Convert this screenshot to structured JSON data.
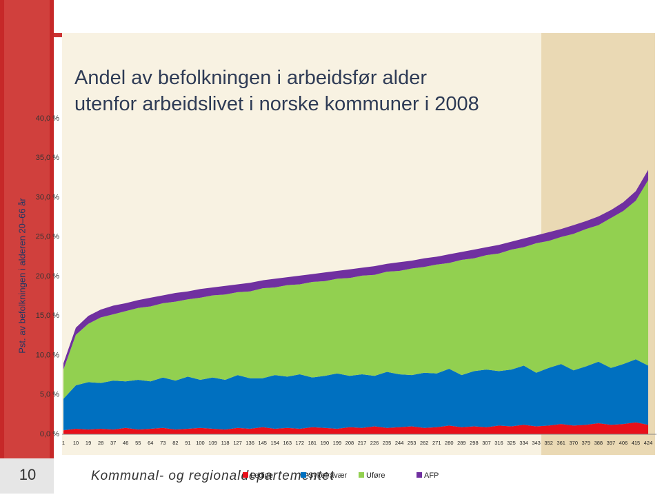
{
  "chart_data": {
    "type": "stacked_area",
    "title": "Andel av befolkningen i arbeidsfør alder utenfor arbeidslivet i norske kommuner i 2008",
    "y_label": "Pst. av befolkningen i alderen 20–66 år",
    "categories": [
      1,
      10,
      19,
      28,
      37,
      46,
      55,
      64,
      73,
      82,
      91,
      100,
      109,
      118,
      127,
      136,
      145,
      154,
      163,
      172,
      181,
      190,
      199,
      208,
      217,
      226,
      235,
      244,
      253,
      262,
      271,
      280,
      289,
      298,
      307,
      316,
      325,
      334,
      343,
      352,
      361,
      370,
      379,
      388,
      397,
      406,
      415,
      424
    ],
    "series": [
      {
        "name": "Ledige",
        "color": "#e8101a",
        "values": [
          0.5,
          0.7,
          0.6,
          0.7,
          0.6,
          0.8,
          0.6,
          0.7,
          0.8,
          0.6,
          0.7,
          0.8,
          0.7,
          0.6,
          0.8,
          0.7,
          0.9,
          0.7,
          0.8,
          0.7,
          0.9,
          0.8,
          0.7,
          0.9,
          0.8,
          1.0,
          0.8,
          0.9,
          1.0,
          0.8,
          0.9,
          1.1,
          0.9,
          1.0,
          0.9,
          1.1,
          1.0,
          1.2,
          1.0,
          1.1,
          1.3,
          1.1,
          1.2,
          1.4,
          1.2,
          1.3,
          1.5,
          1.2
        ]
      },
      {
        "name": "Sykefravær",
        "color": "#0070c0",
        "values": [
          4.0,
          5.5,
          6.0,
          5.8,
          6.2,
          5.9,
          6.3,
          6.0,
          6.4,
          6.2,
          6.6,
          6.1,
          6.5,
          6.3,
          6.7,
          6.4,
          6.2,
          6.8,
          6.5,
          6.9,
          6.3,
          6.6,
          7.0,
          6.5,
          6.8,
          6.4,
          7.1,
          6.7,
          6.5,
          7.0,
          6.8,
          7.2,
          6.6,
          7.0,
          7.3,
          6.9,
          7.2,
          7.5,
          6.8,
          7.3,
          7.6,
          7.0,
          7.4,
          7.8,
          7.2,
          7.6,
          8.0,
          7.5
        ]
      },
      {
        "name": "Uføre",
        "color": "#92d050",
        "values": [
          3.7,
          6.4,
          7.4,
          8.3,
          8.4,
          8.9,
          9.1,
          9.5,
          9.4,
          10.0,
          9.8,
          10.4,
          10.4,
          10.8,
          10.5,
          11.0,
          11.4,
          11.1,
          11.6,
          11.4,
          12.1,
          12.0,
          12.0,
          12.4,
          12.5,
          12.8,
          12.7,
          13.1,
          13.5,
          13.4,
          13.8,
          13.4,
          14.6,
          14.3,
          14.5,
          14.9,
          15.2,
          15.0,
          16.4,
          16.1,
          16.1,
          17.3,
          17.4,
          17.3,
          19.0,
          19.4,
          20.1,
          23.5
        ]
      },
      {
        "name": "AFP",
        "color": "#7030a0",
        "values": [
          0.8,
          0.9,
          1.0,
          1.0,
          1.1,
          1.0,
          1.0,
          1.1,
          1.0,
          1.1,
          1.0,
          1.1,
          1.0,
          1.1,
          1.0,
          1.1,
          1.0,
          1.1,
          1.0,
          1.1,
          1.0,
          1.1,
          1.0,
          1.1,
          1.0,
          1.1,
          1.0,
          1.1,
          1.0,
          1.1,
          1.0,
          1.1,
          1.0,
          1.1,
          1.0,
          1.1,
          1.0,
          1.1,
          1.0,
          1.1,
          1.0,
          1.1,
          1.0,
          1.1,
          1.0,
          1.1,
          1.2,
          1.3
        ]
      }
    ],
    "ylim": [
      0,
      40
    ],
    "yticks": [
      {
        "value": 0,
        "label": "0,0 %"
      },
      {
        "value": 5,
        "label": "5,0 %"
      },
      {
        "value": 10,
        "label": "10,0 %"
      },
      {
        "value": 15,
        "label": "15,0 %"
      },
      {
        "value": 20,
        "label": "20,0 %"
      },
      {
        "value": 25,
        "label": "25,0 %"
      },
      {
        "value": 30,
        "label": "30,0 %"
      },
      {
        "value": 35,
        "label": "35,0 %"
      },
      {
        "value": 40,
        "label": "40,0 %"
      }
    ],
    "legend": "bottom"
  },
  "footer": {
    "page": "10",
    "department": "Kommunal- og regionaldepartementet"
  }
}
